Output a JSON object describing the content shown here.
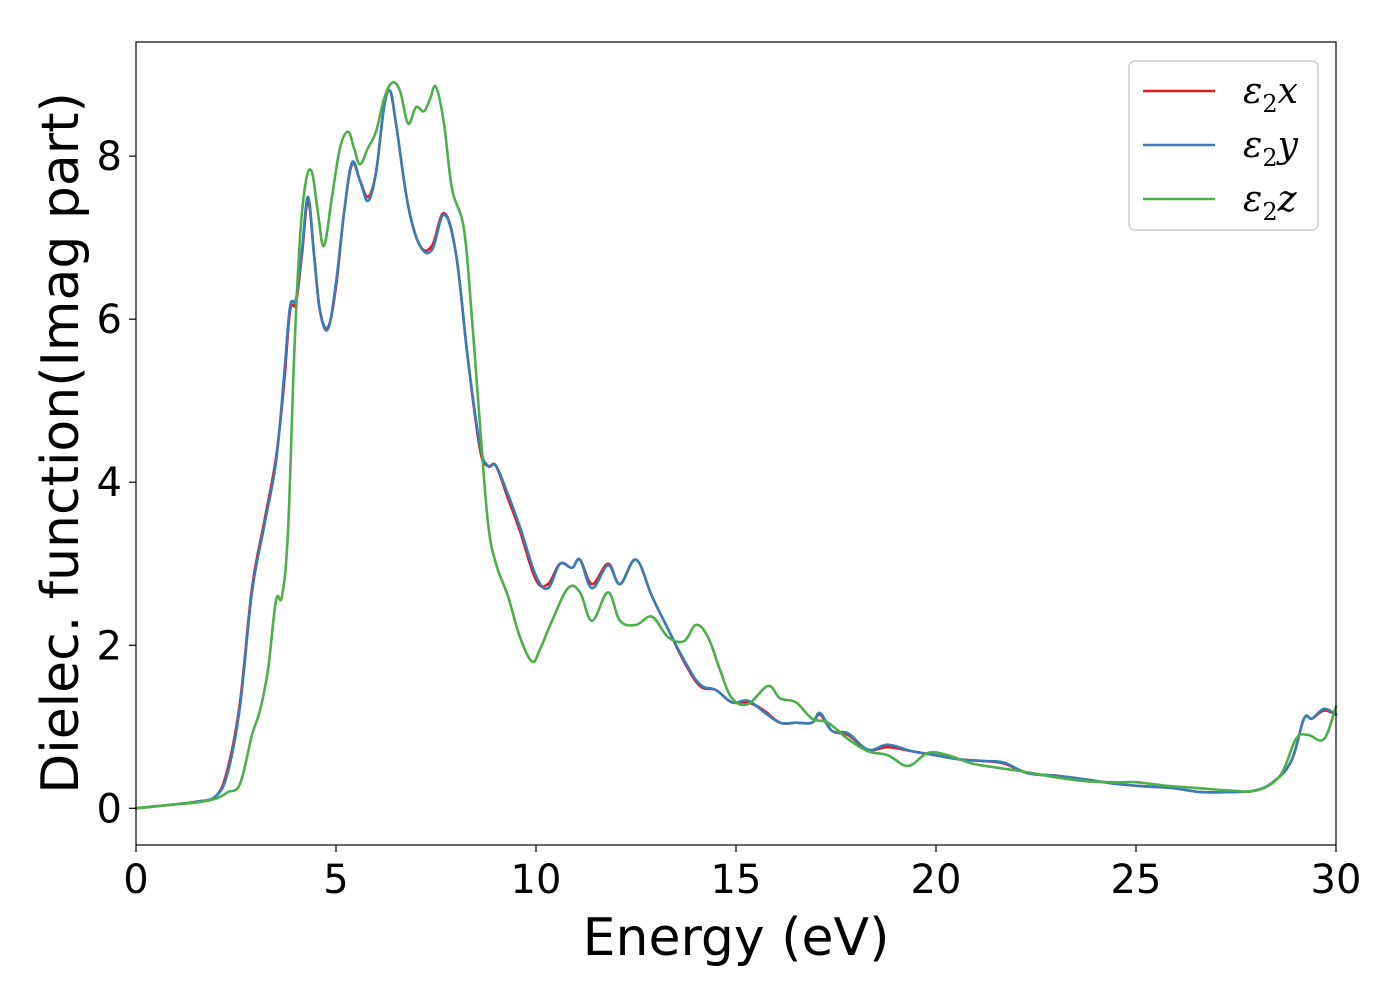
{
  "chart_data": {
    "type": "line",
    "xlabel": "Energy (eV)",
    "ylabel": "Dielec. function(Imag part)",
    "xlim": [
      0,
      30
    ],
    "ylim": [
      -0.45,
      9.4
    ],
    "xticks": [
      0,
      5,
      10,
      15,
      20,
      25,
      30
    ],
    "yticks": [
      0,
      2,
      4,
      6,
      8
    ],
    "grid": false,
    "legend_position": "top-right",
    "series": [
      {
        "name": "ε2x",
        "legend": {
          "base": "ε",
          "sub": "2",
          "var": "x"
        },
        "color": "#e41a1c",
        "x": [
          0,
          1,
          1.5,
          2,
          2.3,
          2.6,
          2.9,
          3.2,
          3.5,
          3.7,
          3.85,
          4.0,
          4.15,
          4.3,
          4.45,
          4.6,
          4.8,
          5.0,
          5.2,
          5.4,
          5.6,
          5.8,
          6.0,
          6.2,
          6.35,
          6.5,
          6.8,
          7.1,
          7.4,
          7.7,
          8.0,
          8.3,
          8.6,
          8.8,
          9.0,
          9.3,
          9.6,
          10.0,
          10.3,
          10.6,
          10.9,
          11.1,
          11.4,
          11.8,
          12.1,
          12.5,
          12.9,
          13.3,
          13.7,
          14.1,
          14.5,
          14.9,
          15.3,
          15.7,
          16.1,
          16.5,
          16.9,
          17.1,
          17.4,
          17.8,
          18.3,
          18.8,
          19.4,
          20.0,
          20.6,
          21.2,
          21.7,
          22.3,
          23.0,
          23.8,
          24.5,
          25.2,
          25.9,
          26.6,
          27.3,
          28.0,
          28.5,
          28.9,
          29.2,
          29.4,
          29.7,
          30.0
        ],
        "y": [
          0,
          0.05,
          0.08,
          0.15,
          0.5,
          1.3,
          2.7,
          3.5,
          4.3,
          5.2,
          6.1,
          6.2,
          6.8,
          7.45,
          6.8,
          6.1,
          5.9,
          6.4,
          7.3,
          7.9,
          7.7,
          7.5,
          7.8,
          8.6,
          8.8,
          8.4,
          7.4,
          6.9,
          6.9,
          7.3,
          6.8,
          5.5,
          4.4,
          4.2,
          4.2,
          3.8,
          3.4,
          2.8,
          2.75,
          3.0,
          2.95,
          3.05,
          2.75,
          3.0,
          2.75,
          3.05,
          2.6,
          2.2,
          1.8,
          1.5,
          1.45,
          1.3,
          1.3,
          1.2,
          1.05,
          1.05,
          1.05,
          1.15,
          0.95,
          0.9,
          0.72,
          0.75,
          0.7,
          0.65,
          0.6,
          0.58,
          0.55,
          0.43,
          0.4,
          0.35,
          0.3,
          0.27,
          0.25,
          0.2,
          0.2,
          0.22,
          0.35,
          0.6,
          1.1,
          1.1,
          1.2,
          1.15
        ]
      },
      {
        "name": "ε2y",
        "legend": {
          "base": "ε",
          "sub": "2",
          "var": "y"
        },
        "color": "#377eb8",
        "x": [
          0,
          1,
          1.5,
          2,
          2.3,
          2.6,
          2.9,
          3.2,
          3.5,
          3.7,
          3.85,
          4.0,
          4.15,
          4.3,
          4.45,
          4.6,
          4.8,
          5.0,
          5.2,
          5.4,
          5.6,
          5.8,
          6.0,
          6.2,
          6.35,
          6.5,
          6.8,
          7.1,
          7.4,
          7.7,
          8.0,
          8.3,
          8.6,
          8.8,
          9.0,
          9.3,
          9.6,
          10.0,
          10.3,
          10.6,
          10.9,
          11.1,
          11.4,
          11.8,
          12.1,
          12.5,
          12.9,
          13.3,
          13.7,
          14.1,
          14.5,
          14.9,
          15.3,
          15.7,
          16.1,
          16.5,
          16.9,
          17.1,
          17.4,
          17.8,
          18.3,
          18.8,
          19.4,
          20.0,
          20.6,
          21.2,
          21.7,
          22.3,
          23.0,
          23.8,
          24.5,
          25.2,
          25.9,
          26.6,
          27.3,
          28.0,
          28.5,
          28.9,
          29.2,
          29.4,
          29.7,
          30.0
        ],
        "y": [
          0,
          0.05,
          0.08,
          0.15,
          0.45,
          1.25,
          2.65,
          3.45,
          4.25,
          5.3,
          6.15,
          6.25,
          6.85,
          7.5,
          6.8,
          6.1,
          5.88,
          6.45,
          7.3,
          7.92,
          7.7,
          7.45,
          7.8,
          8.6,
          8.8,
          8.4,
          7.4,
          6.9,
          6.85,
          7.28,
          6.8,
          5.5,
          4.45,
          4.2,
          4.2,
          3.85,
          3.45,
          2.85,
          2.7,
          3.0,
          2.95,
          3.05,
          2.7,
          2.98,
          2.75,
          3.05,
          2.6,
          2.2,
          1.82,
          1.52,
          1.45,
          1.3,
          1.32,
          1.18,
          1.05,
          1.05,
          1.05,
          1.17,
          0.95,
          0.92,
          0.72,
          0.78,
          0.7,
          0.65,
          0.6,
          0.58,
          0.56,
          0.43,
          0.4,
          0.35,
          0.3,
          0.27,
          0.25,
          0.2,
          0.2,
          0.22,
          0.35,
          0.6,
          1.1,
          1.1,
          1.22,
          1.15
        ]
      },
      {
        "name": "ε2z",
        "legend": {
          "base": "ε",
          "sub": "2",
          "var": "z"
        },
        "color": "#4daf4a",
        "x": [
          0,
          1,
          1.5,
          2,
          2.3,
          2.6,
          2.9,
          3.1,
          3.3,
          3.5,
          3.65,
          3.8,
          3.95,
          4.1,
          4.25,
          4.4,
          4.55,
          4.7,
          4.9,
          5.1,
          5.3,
          5.45,
          5.6,
          5.8,
          6.0,
          6.2,
          6.4,
          6.6,
          6.8,
          7.0,
          7.2,
          7.35,
          7.5,
          7.7,
          7.9,
          8.2,
          8.4,
          8.6,
          8.8,
          9.0,
          9.3,
          9.6,
          9.9,
          10.1,
          10.4,
          10.8,
          11.1,
          11.4,
          11.8,
          12.1,
          12.5,
          12.9,
          13.3,
          13.7,
          14.0,
          14.3,
          14.6,
          14.9,
          15.3,
          15.8,
          16.1,
          16.5,
          16.9,
          17.3,
          17.8,
          18.3,
          18.8,
          19.3,
          19.8,
          20.3,
          20.9,
          21.5,
          22.2,
          23.0,
          23.8,
          24.5,
          25.0,
          25.7,
          26.5,
          27.3,
          28.0,
          28.6,
          29.0,
          29.3,
          29.7,
          30.0
        ],
        "y": [
          0,
          0.05,
          0.07,
          0.12,
          0.2,
          0.3,
          0.9,
          1.2,
          1.7,
          2.55,
          2.6,
          3.4,
          5.5,
          7.0,
          7.7,
          7.8,
          7.3,
          6.9,
          7.5,
          8.1,
          8.3,
          8.1,
          7.9,
          8.1,
          8.3,
          8.7,
          8.9,
          8.8,
          8.4,
          8.6,
          8.55,
          8.7,
          8.85,
          8.4,
          7.6,
          7.1,
          6.0,
          4.7,
          3.5,
          3.0,
          2.6,
          2.1,
          1.8,
          1.95,
          2.3,
          2.7,
          2.65,
          2.3,
          2.65,
          2.3,
          2.25,
          2.35,
          2.1,
          2.05,
          2.25,
          2.1,
          1.7,
          1.35,
          1.28,
          1.5,
          1.35,
          1.3,
          1.1,
          1.05,
          0.85,
          0.7,
          0.65,
          0.52,
          0.68,
          0.65,
          0.55,
          0.5,
          0.45,
          0.38,
          0.33,
          0.32,
          0.32,
          0.28,
          0.25,
          0.22,
          0.22,
          0.4,
          0.85,
          0.9,
          0.85,
          1.25
        ]
      }
    ]
  }
}
